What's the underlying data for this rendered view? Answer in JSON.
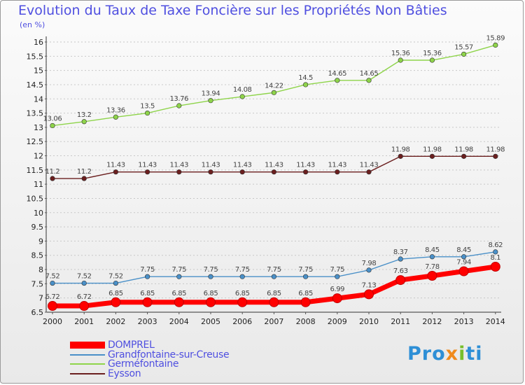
{
  "chart_data": {
    "type": "line",
    "title": "Evolution du Taux de Taxe Foncière sur les Propriétés Non Bâties",
    "unit_label": "(en %)",
    "x": [
      "2000",
      "2001",
      "2002",
      "2003",
      "2004",
      "2005",
      "2006",
      "2007",
      "2008",
      "2009",
      "2010",
      "2011",
      "2012",
      "2013",
      "2014"
    ],
    "ylim": [
      6.5,
      16
    ],
    "yticks": [
      6.5,
      7,
      7.5,
      8,
      8.5,
      9,
      9.5,
      10,
      10.5,
      11,
      11.5,
      12,
      12.5,
      13,
      13.5,
      14,
      14.5,
      15,
      15.5,
      16
    ],
    "ytick_labels": [
      "6.5",
      "7",
      "7.5",
      "8",
      "8.5",
      "9",
      "9.5",
      "10",
      "10.5",
      "11",
      "11.5",
      "12",
      "12.5",
      "13",
      "13.5",
      "14",
      "14.5",
      "15",
      "15.5",
      "16"
    ],
    "grid": "horizontal dashed",
    "legend_position": "bottom-left",
    "series": [
      {
        "name": "DOMPREL",
        "color": "#ff0000",
        "emphasized": true,
        "values": [
          6.72,
          6.72,
          6.85,
          6.85,
          6.85,
          6.85,
          6.85,
          6.85,
          6.85,
          6.99,
          7.13,
          7.63,
          7.78,
          7.94,
          8.1
        ],
        "labels": [
          "6.72",
          "6.72",
          "6.85",
          "6.85",
          "6.85",
          "6.85",
          "6.85",
          "6.85",
          "6.85",
          "6.99",
          "7.13",
          "7.63",
          "7.78",
          "7.94",
          "8.1"
        ]
      },
      {
        "name": "Grandfontaine-sur-Creuse",
        "color": "#4a90c8",
        "values": [
          7.52,
          7.52,
          7.52,
          7.75,
          7.75,
          7.75,
          7.75,
          7.75,
          7.75,
          7.75,
          7.98,
          8.37,
          8.45,
          8.45,
          8.62
        ],
        "labels": [
          "7.52",
          "7.52",
          "7.52",
          "7.75",
          "7.75",
          "7.75",
          "7.75",
          "7.75",
          "7.75",
          "7.75",
          "7.98",
          "8.37",
          "8.45",
          "8.45",
          "8.62"
        ]
      },
      {
        "name": "Germéfontaine",
        "color": "#8ed44a",
        "values": [
          13.06,
          13.2,
          13.36,
          13.5,
          13.76,
          13.94,
          14.08,
          14.22,
          14.5,
          14.65,
          14.65,
          15.36,
          15.36,
          15.57,
          15.89
        ],
        "labels": [
          "13.06",
          "13.2",
          "13.36",
          "13.5",
          "13.76",
          "13.94",
          "14.08",
          "14.22",
          "14.5",
          "14.65",
          "14.65",
          "15.36",
          "15.36",
          "15.57",
          "15.89"
        ]
      },
      {
        "name": "Eysson",
        "color": "#6b1f1f",
        "values": [
          11.2,
          11.2,
          11.43,
          11.43,
          11.43,
          11.43,
          11.43,
          11.43,
          11.43,
          11.43,
          11.43,
          11.98,
          11.98,
          11.98,
          11.98
        ],
        "labels": [
          "11.2",
          "11.2",
          "11.43",
          "11.43",
          "11.43",
          "11.43",
          "11.43",
          "11.43",
          "11.43",
          "11.43",
          "11.43",
          "11.98",
          "11.98",
          "11.98",
          "11.98"
        ]
      }
    ]
  },
  "brand": {
    "letters": [
      "Pro",
      "x",
      "i",
      "ti"
    ]
  }
}
